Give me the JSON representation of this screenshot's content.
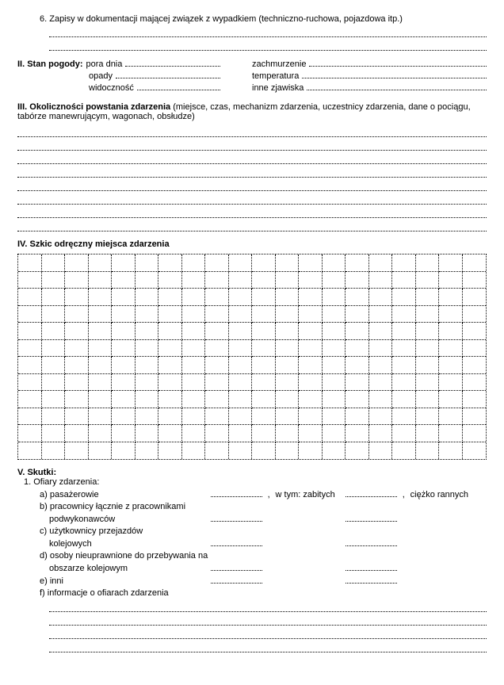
{
  "item6": "6. Zapisy w dokumentacji mającej związek z wypadkiem (techniczno-ruchowa, pojazdowa itp.)",
  "section2": {
    "title": "II. Stan pogody:",
    "pora_dnia": "pora dnia",
    "opady": "opady",
    "widocznosc": "widoczność",
    "zachmurzenie": "zachmurzenie",
    "temperatura": "temperatura",
    "inne": "inne zjawiska"
  },
  "section3": {
    "title": "III. Okoliczności powstania zdarzenia",
    "subtitle": "(miejsce, czas, mechanizm zdarzenia, uczestnicy zdarzenia, dane o pociągu, tabórze manewrującym, wagonach, obsłudze)"
  },
  "section4": {
    "title": "IV. Szkic odręczny miejsca zdarzenia"
  },
  "section5": {
    "title": "V. Skutki:",
    "ofiary": "1. Ofiary zdarzenia:",
    "a": "a) pasażerowie",
    "b1": "b) pracownicy łącznie z pracownikami",
    "b2": "podwykonawców",
    "c1": "c) użytkownicy przejazdów",
    "c2": "kolejowych",
    "d1": "d) osoby nieuprawnione do przebywania na",
    "d2": "obszarze kolejowym",
    "e": "e) inni",
    "f": "f) informacje o ofiarach zdarzenia",
    "wtym": "w tym: zabitych",
    "ciezko": "ciężko rannych",
    "comma": ","
  },
  "grid": {
    "cols": 20,
    "rows": 12
  }
}
